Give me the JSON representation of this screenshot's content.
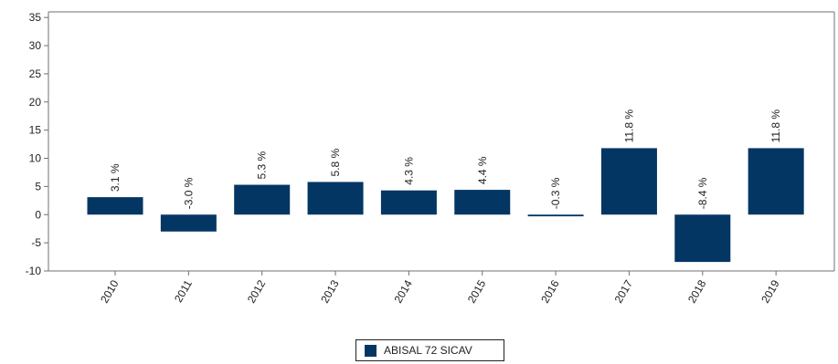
{
  "chart_data": {
    "type": "bar",
    "categories": [
      "2010",
      "2011",
      "2012",
      "2013",
      "2014",
      "2015",
      "2016",
      "2017",
      "2018",
      "2019"
    ],
    "series": [
      {
        "name": "ABISAL 72 SICAV",
        "values": [
          3.1,
          -3.0,
          5.3,
          5.8,
          4.3,
          4.4,
          -0.3,
          11.8,
          -8.4,
          11.8
        ],
        "labels": [
          "3.1 %",
          "-3.0 %",
          "5.3 %",
          "5.8 %",
          "4.3 %",
          "4.4 %",
          "-0.3 %",
          "11.8 %",
          "-8.4 %",
          "11.8 %"
        ]
      }
    ],
    "yticks": [
      35,
      30,
      25,
      20,
      15,
      10,
      5,
      0,
      -5,
      -10
    ],
    "ylim": [
      -10,
      36
    ],
    "grid": false,
    "legend_position": "bottom-center",
    "colors": {
      "bar": "#033663",
      "axis": "#707070",
      "text": "#222222"
    }
  }
}
